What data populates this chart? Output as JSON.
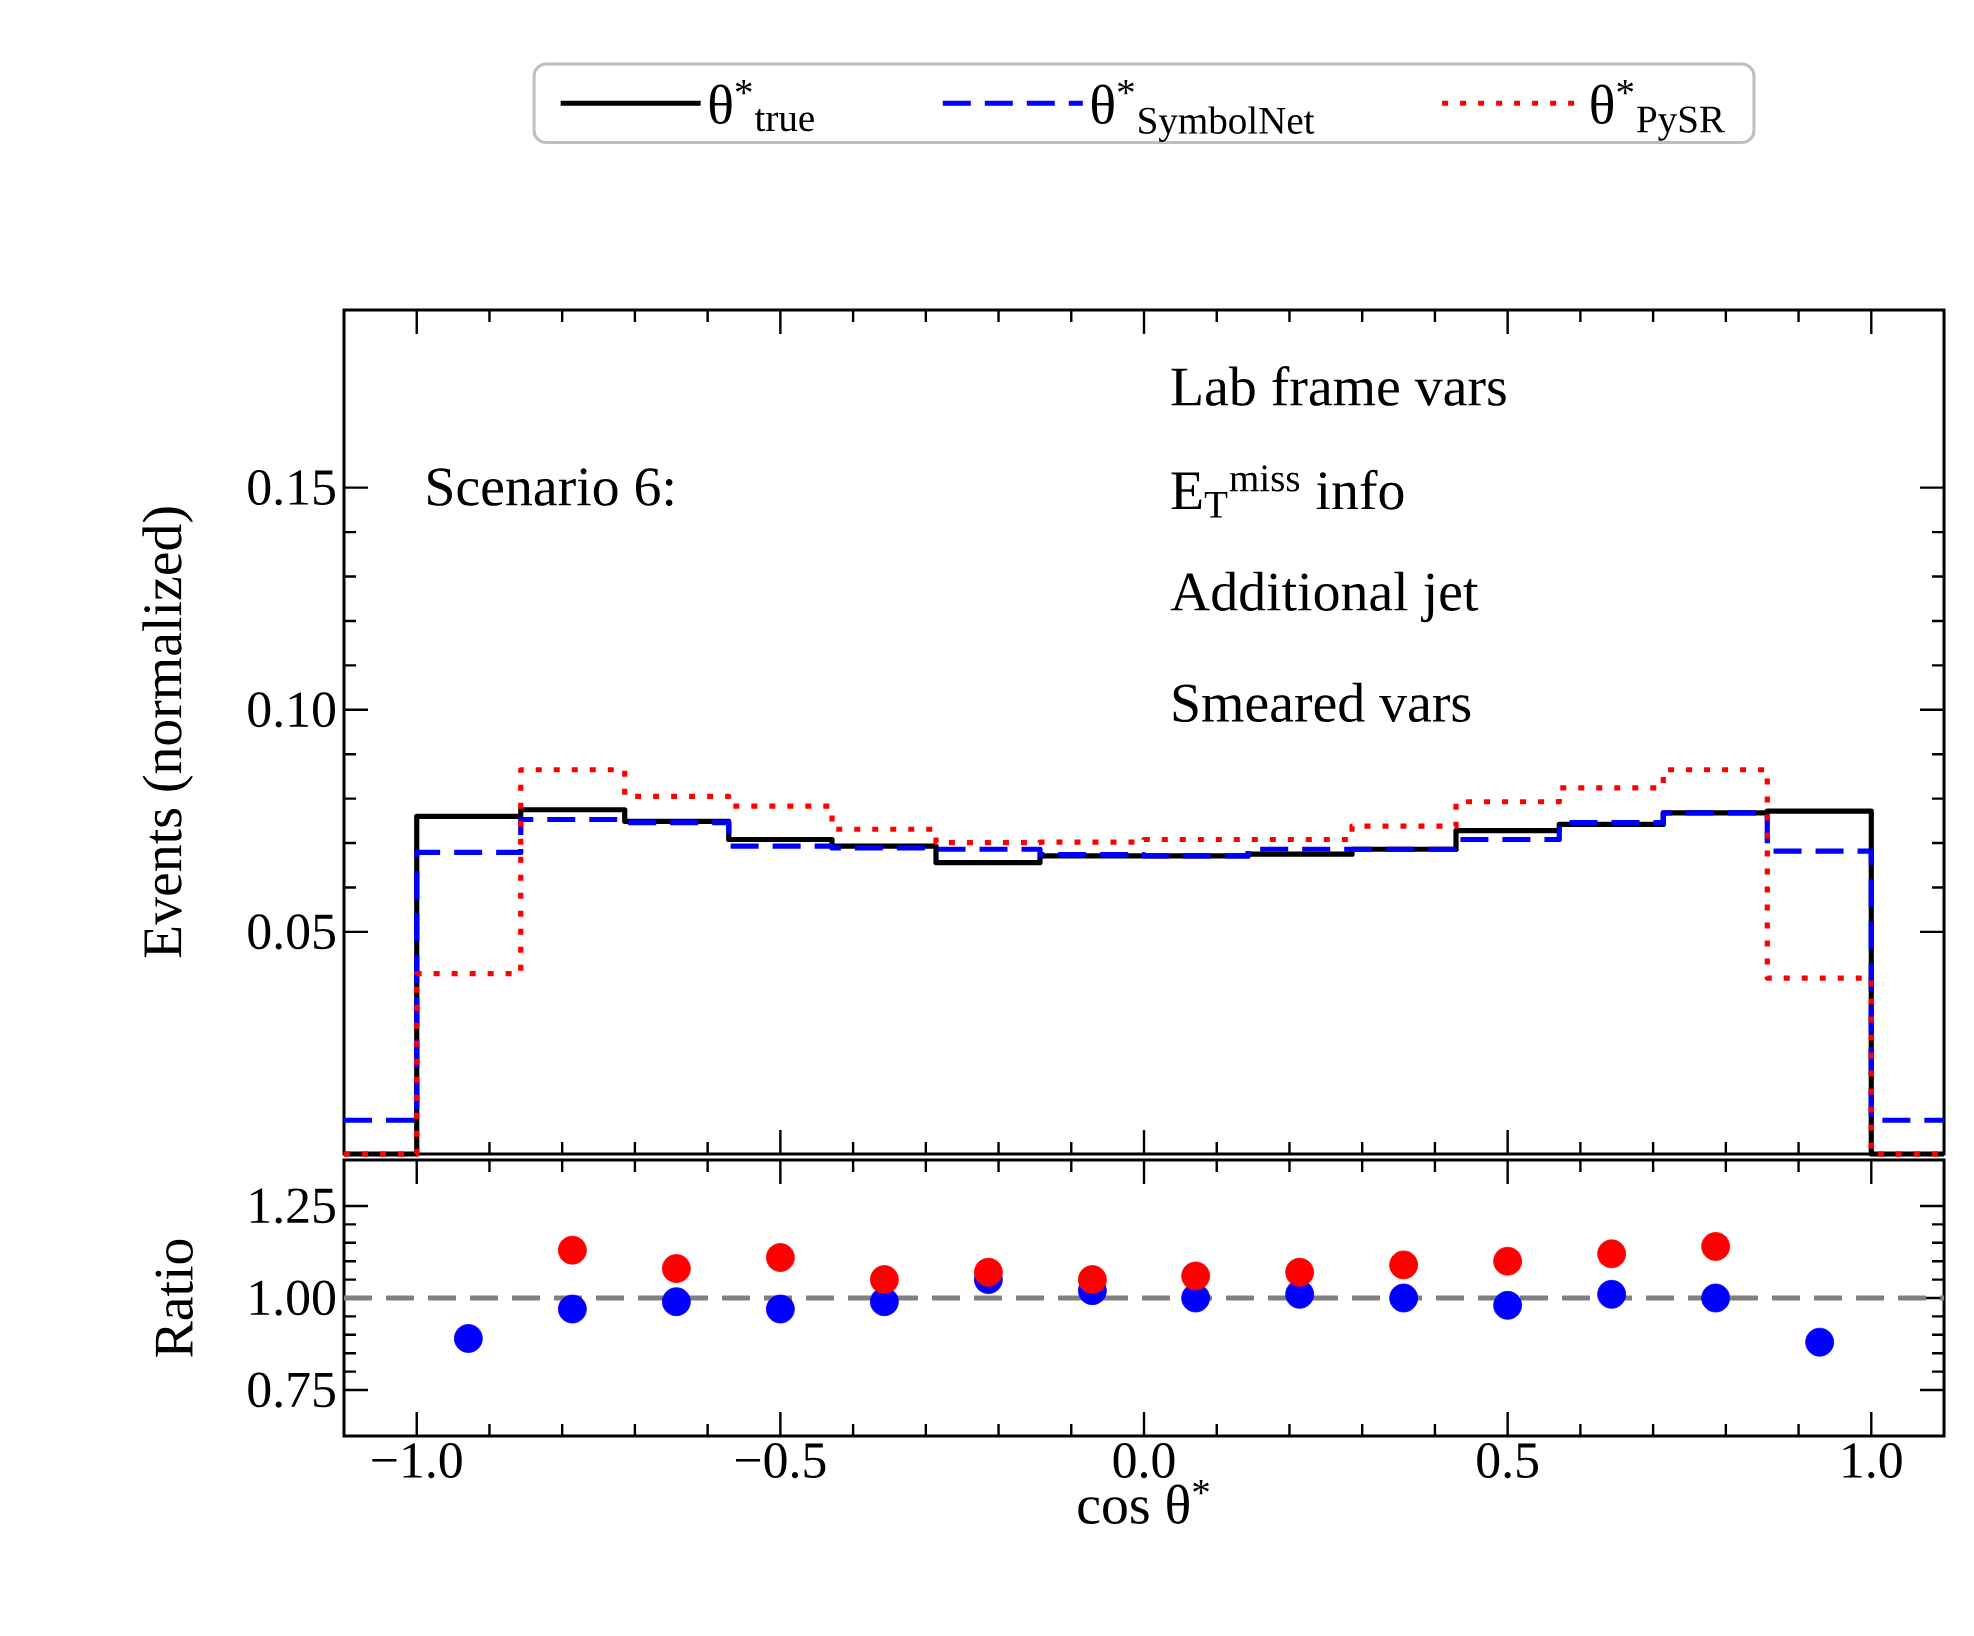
{
  "chart_data": [
    {
      "type": "histogram",
      "bins": [
        -1.1,
        -1.0,
        -0.857,
        -0.714,
        -0.571,
        -0.429,
        -0.286,
        -0.143,
        0.0,
        0.143,
        0.286,
        0.429,
        0.571,
        0.714,
        0.857,
        1.0,
        1.1
      ],
      "series": [
        {
          "name": "θ$^{*}$$_{true}$",
          "color": "#000000",
          "line_style": "solid",
          "values": [
            0,
            0.076,
            0.0775,
            0.0749,
            0.0708,
            0.0693,
            0.0656,
            0.0671,
            0.0671,
            0.0675,
            0.0686,
            0.0728,
            0.0742,
            0.0768,
            0.0772,
            0
          ]
        },
        {
          "name": "θ$^{*}$$_{SymbolNet}$",
          "color": "#0000ff",
          "line_style": "dashed",
          "values": [
            0.0076,
            0.0679,
            0.0753,
            0.0746,
            0.0693,
            0.0689,
            0.0686,
            0.0674,
            0.0671,
            0.0686,
            0.0686,
            0.0708,
            0.0746,
            0.0768,
            0.0682,
            0.0076
          ]
        },
        {
          "name": "θ$^{*}$$_{PySR}$",
          "color": "#ff0000",
          "line_style": "dotted",
          "values": [
            0,
            0.0406,
            0.0865,
            0.0805,
            0.0783,
            0.0731,
            0.0701,
            0.0702,
            0.0708,
            0.0708,
            0.0738,
            0.0793,
            0.0824,
            0.0865,
            0.0396,
            0
          ]
        }
      ],
      "xlim": [
        -1.1,
        1.1
      ],
      "ylim": [
        0,
        0.19
      ],
      "xticks": [
        {
          "value": -1.0,
          "label": null
        },
        {
          "value": -0.5,
          "label": null
        },
        {
          "value": 0.0,
          "label": null
        },
        {
          "value": 0.5,
          "label": null
        },
        {
          "value": 1.0,
          "label": null
        }
      ],
      "yticks": [
        0.05,
        {
          "value": 0.1,
          "label": "0.10"
        },
        0.15
      ],
      "ylabel": "Events (normalized)",
      "tick_labels": "y",
      "legend": "top",
      "annotations": [
        "Scenario 6:",
        "Lab frame vars",
        "E$_{T}$$^{miss}$ info",
        "Additional jet",
        "Smeared vars"
      ]
    },
    {
      "type": "scatter",
      "marker": "circle",
      "x": [
        -0.929,
        -0.786,
        -0.643,
        -0.5,
        -0.357,
        -0.214,
        -0.071,
        0.071,
        0.214,
        0.357,
        0.5,
        0.643,
        0.786,
        0.929
      ],
      "series": [
        {
          "color": "#0000ff",
          "values": [
            0.89,
            0.97,
            0.99,
            0.97,
            0.99,
            1.05,
            1.02,
            1.0,
            1.01,
            1.0,
            0.98,
            1.01,
            1.0,
            0.88
          ]
        },
        {
          "color": "#ff0000",
          "values": [
            null,
            1.13,
            1.08,
            1.11,
            1.05,
            1.07,
            1.05,
            1.06,
            1.07,
            1.09,
            1.1,
            1.12,
            1.14,
            null
          ]
        }
      ],
      "xlim": [
        -1.1,
        1.1
      ],
      "ylim": [
        0.625,
        1.375
      ],
      "xticks": [
        {
          "value": -1.0,
          "label": "−1.0"
        },
        {
          "value": -0.5,
          "label": "−0.5"
        },
        {
          "value": 0.0,
          "label": "0.0"
        },
        {
          "value": 0.5,
          "label": "0.5"
        },
        {
          "value": 1.0,
          "label": "1.0"
        }
      ],
      "yticks": [
        0.75,
        {
          "value": 1.0,
          "label": "1.00"
        },
        1.25
      ],
      "xlabel": "cos θ$^{*}$",
      "ylabel": "Ratio",
      "ref_lines": [
        {
          "axis": "y",
          "value": 1.0,
          "color": "#808080",
          "line_style": "dashed"
        }
      ]
    }
  ]
}
